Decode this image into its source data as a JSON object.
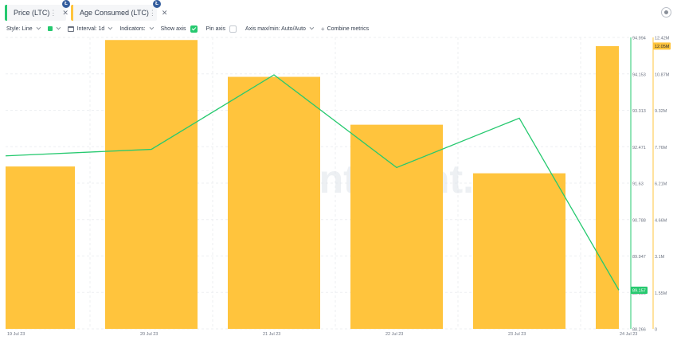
{
  "metrics": [
    {
      "name": "Price (LTC)",
      "color": "#26c96f",
      "badge": "Ł"
    },
    {
      "name": "Age Consumed (LTC)",
      "color": "#ffc43d",
      "badge": "Ł"
    }
  ],
  "toolbar": {
    "style_label": "Style: Line",
    "interval_label": "Interval: 1d",
    "indicators_label": "Indicators:",
    "show_axis_label": "Show axis",
    "show_axis_checked": true,
    "pin_axis_label": "Pin axis",
    "pin_axis_checked": false,
    "axis_minmax_label": "Axis max/min: Auto/Auto",
    "combine_label": "Combine metrics"
  },
  "chart_data": {
    "type": "bar+line",
    "categories": [
      "19 Jul 23",
      "20 Jul 23",
      "21 Jul 23",
      "22 Jul 23",
      "23 Jul 23",
      "24 Jul 23"
    ],
    "watermark": "santiment.",
    "series": [
      {
        "name": "Age Consumed (LTC)",
        "type": "bar",
        "color": "#ffc43d",
        "axis": "right",
        "values": [
          6.92,
          12.31,
          10.74,
          8.7,
          6.63,
          12.05
        ]
      },
      {
        "name": "Price (LTC)",
        "type": "line",
        "color": "#26c96f",
        "axis": "left",
        "values": [
          92.26,
          92.41,
          94.13,
          91.99,
          93.13,
          89.16
        ]
      }
    ],
    "left_axis": {
      "range": [
        88.266,
        94.994
      ],
      "ticks": [
        "94.994",
        "94.153",
        "93.313",
        "92.471",
        "91.63",
        "90.788",
        "89.947",
        "89.106",
        "88.266"
      ],
      "current_value_label": "89.157",
      "current_value": 89.157
    },
    "right_axis": {
      "range": [
        0,
        12.42
      ],
      "ticks": [
        "12.42M",
        "10.87M",
        "9.32M",
        "7.76M",
        "6.21M",
        "4.66M",
        "3.1M",
        "1.55M",
        "0"
      ],
      "current_value_label": "12.05M",
      "current_value": 12.05
    },
    "grid": true
  }
}
